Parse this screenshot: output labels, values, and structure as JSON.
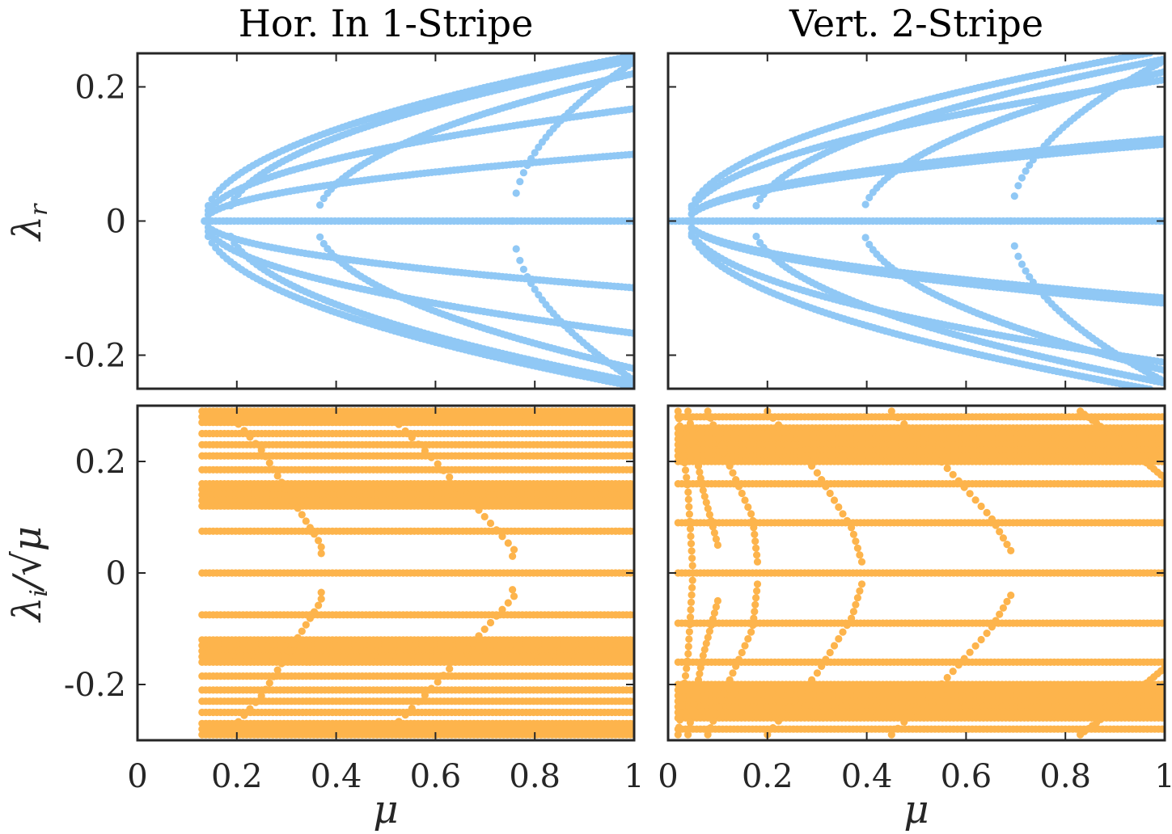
{
  "colors": {
    "real": "#90C8F5",
    "imag": "#FDB44C",
    "axis": "#262626"
  },
  "panel_titles": [
    "Hor. In 1-Stripe",
    "Vert. 2-Stripe"
  ],
  "x_axis": {
    "label": "μ",
    "ticks": [
      0,
      0.2,
      0.4,
      0.6,
      0.8,
      1
    ],
    "tick_labels": [
      "0",
      "0.2",
      "0.4",
      "0.6",
      "0.8",
      "1"
    ]
  },
  "y_axis_top": {
    "label_main": "λ",
    "label_sub": "r",
    "ticks": [
      -0.2,
      0,
      0.2
    ],
    "tick_labels": [
      "-0.2",
      "0",
      "0.2"
    ]
  },
  "y_axis_bottom": {
    "label_main": "λ",
    "label_sub": "i",
    "label_rest": "/√μ",
    "ticks": [
      -0.2,
      0,
      0.2
    ],
    "tick_labels": [
      "-0.2",
      "0",
      "0.2"
    ]
  },
  "chart_data": [
    {
      "type": "scatter",
      "title": "Hor. In 1-Stripe",
      "xlabel": "",
      "ylabel": "λ_r",
      "xlim": [
        0,
        1
      ],
      "ylim": [
        -0.25,
        0.25
      ],
      "series": [
        {
          "name": "zero",
          "kind": "line",
          "x": [
            0.135,
            1
          ],
          "y": [
            0,
            0
          ]
        },
        {
          "name": "branch1",
          "kind": "sym_sqrt",
          "x0": 0.135,
          "x_end": 1,
          "a": 0.265
        },
        {
          "name": "branch2",
          "kind": "sym_sqrt",
          "x0": 0.135,
          "x_end": 1,
          "a": 0.18
        },
        {
          "name": "branch3",
          "kind": "sym_sqrt",
          "x0": 0.135,
          "x_end": 1,
          "a": 0.107
        },
        {
          "name": "branch4",
          "kind": "sym_sqrt",
          "x0": 0.18,
          "x_end": 1,
          "a": 0.265
        },
        {
          "name": "branch5",
          "kind": "sym_sqrt",
          "x0": 0.36,
          "x_end": 1,
          "a": 0.275
        },
        {
          "name": "branch6",
          "kind": "sym_sqrt",
          "x0": 0.755,
          "x_end": 1,
          "a": 0.48
        }
      ]
    },
    {
      "type": "scatter",
      "title": "Vert. 2-Stripe",
      "xlabel": "",
      "ylabel": "",
      "xlim": [
        0,
        1
      ],
      "ylim": [
        -0.25,
        0.25
      ],
      "series": [
        {
          "name": "zero",
          "kind": "line",
          "x": [
            0,
            1
          ],
          "y": [
            0,
            0
          ]
        },
        {
          "name": "branch1",
          "kind": "sym_sqrt",
          "x0": 0.04,
          "x_end": 0.97,
          "a": 0.26
        },
        {
          "name": "branch2",
          "kind": "sym_sqrt",
          "x0": 0.04,
          "x_end": 1,
          "a": 0.215
        },
        {
          "name": "branch3",
          "kind": "sym_sqrt",
          "x0": 0.04,
          "x_end": 1,
          "a": 0.125
        },
        {
          "name": "branch4",
          "kind": "sym_sqrt",
          "x0": 0.04,
          "x_end": 1,
          "a": 0.117
        },
        {
          "name": "branch5",
          "kind": "sym_sqrt",
          "x0": 0.17,
          "x_end": 1,
          "a": 0.265
        },
        {
          "name": "branch6",
          "kind": "sym_sqrt",
          "x0": 0.39,
          "x_end": 1,
          "a": 0.285
        },
        {
          "name": "branch7",
          "kind": "sym_sqrt",
          "x0": 0.69,
          "x_end": 1,
          "a": 0.43
        }
      ]
    },
    {
      "type": "scatter",
      "title": "",
      "xlabel": "μ",
      "ylabel": "λ_i/√μ",
      "xlim": [
        0,
        1
      ],
      "ylim": [
        -0.3,
        0.3
      ],
      "series": [
        {
          "name": "bands",
          "kind": "hbands",
          "x_start": 0.13,
          "x_end": 1,
          "y": [
            0.29,
            0.28,
            0.27,
            0.25,
            0.23,
            0.21,
            0.185,
            0.16,
            0.15,
            0.14,
            0.13,
            0.12,
            0.075,
            0,
            -0.075,
            -0.12,
            -0.13,
            -0.14,
            -0.15,
            -0.16,
            -0.185,
            -0.21,
            -0.23,
            -0.25,
            -0.27,
            -0.28,
            -0.29
          ]
        },
        {
          "name": "curve1",
          "kind": "sym_curve",
          "x": [
            0.18,
            0.25,
            0.32,
            0.37,
            0.37
          ],
          "y": [
            0.29,
            0.22,
            0.12,
            0.05,
            0.035
          ]
        },
        {
          "name": "curve2",
          "kind": "sym_curve",
          "x": [
            0.5,
            0.6,
            0.7,
            0.76,
            0.755
          ],
          "y": [
            0.29,
            0.2,
            0.1,
            0.04,
            0.03
          ]
        }
      ]
    },
    {
      "type": "scatter",
      "title": "",
      "xlabel": "μ",
      "ylabel": "",
      "xlim": [
        0,
        1
      ],
      "ylim": [
        -0.3,
        0.3
      ],
      "series": [
        {
          "name": "bands",
          "kind": "hbands",
          "x_start": 0.02,
          "x_end": 1,
          "y": [
            0.28,
            0.26,
            0.25,
            0.24,
            0.23,
            0.22,
            0.21,
            0.2,
            0.16,
            0.09,
            0,
            -0.09,
            -0.16,
            -0.2,
            -0.21,
            -0.22,
            -0.23,
            -0.24,
            -0.25,
            -0.26,
            -0.28
          ]
        },
        {
          "name": "curve1",
          "kind": "sym_curve",
          "x": [
            0.02,
            0.04,
            0.05
          ],
          "y": [
            0.29,
            0.15,
            0.0
          ]
        },
        {
          "name": "curve2",
          "kind": "sym_curve",
          "x": [
            0.04,
            0.07,
            0.1
          ],
          "y": [
            0.29,
            0.15,
            0.05
          ]
        },
        {
          "name": "curve3",
          "kind": "sym_curve",
          "x": [
            0.08,
            0.12,
            0.17,
            0.18
          ],
          "y": [
            0.29,
            0.2,
            0.1,
            0.02
          ]
        },
        {
          "name": "curve4",
          "kind": "sym_curve",
          "x": [
            0.2,
            0.3,
            0.37,
            0.39
          ],
          "y": [
            0.29,
            0.18,
            0.08,
            0.02
          ]
        },
        {
          "name": "curve5",
          "kind": "sym_curve",
          "x": [
            0.45,
            0.55,
            0.65,
            0.69
          ],
          "y": [
            0.29,
            0.2,
            0.1,
            0.04
          ]
        },
        {
          "name": "curve6",
          "kind": "sym_curve",
          "x": [
            0.83,
            0.92,
            1.0
          ],
          "y": [
            0.29,
            0.23,
            0.17
          ]
        }
      ]
    }
  ]
}
